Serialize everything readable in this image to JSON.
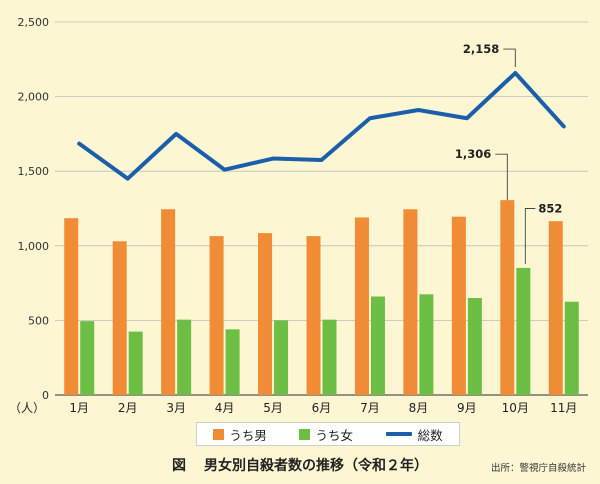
{
  "chart_data": {
    "type": "bar",
    "unit_label": "（人）",
    "categories": [
      "1月",
      "2月",
      "3月",
      "4月",
      "5月",
      "6月",
      "7月",
      "8月",
      "9月",
      "10月",
      "11月"
    ],
    "series": [
      {
        "name": "うち男",
        "type": "bar",
        "color": "#f08c35",
        "values": [
          1185,
          1030,
          1245,
          1065,
          1085,
          1065,
          1190,
          1245,
          1195,
          1306,
          1165
        ]
      },
      {
        "name": "うち女",
        "type": "bar",
        "color": "#6cbe45",
        "values": [
          495,
          425,
          505,
          440,
          500,
          505,
          660,
          675,
          650,
          852,
          625
        ]
      },
      {
        "name": "総数",
        "type": "line",
        "color": "#1b5faa",
        "values": [
          1685,
          1450,
          1750,
          1510,
          1585,
          1575,
          1855,
          1910,
          1855,
          2158,
          1800
        ]
      }
    ],
    "ylim": [
      0,
      2500
    ],
    "yticks": [
      "0",
      "500",
      "1,000",
      "1,500",
      "2,000",
      "2,500"
    ],
    "grid": true,
    "legend_position": "bottom",
    "annotations": [
      {
        "label": "2,158",
        "series": "総数",
        "category": "10月"
      },
      {
        "label": "1,306",
        "series": "うち男",
        "category": "10月"
      },
      {
        "label": "852",
        "series": "うち女",
        "category": "10月"
      }
    ]
  },
  "caption": {
    "figure_label": "図",
    "title": "男女別自殺者数の推移（令和２年）"
  },
  "source": "出所：警視庁自殺統計",
  "legend": {
    "male": "うち男",
    "female": "うち女",
    "total": "総数"
  }
}
